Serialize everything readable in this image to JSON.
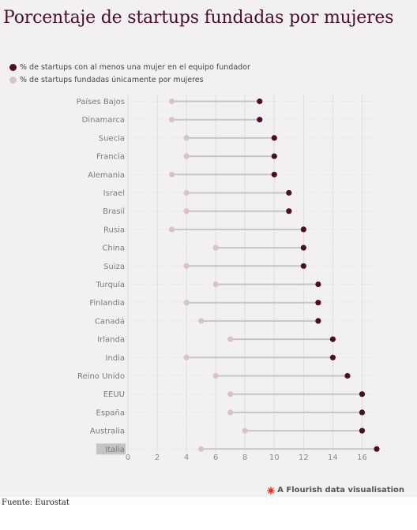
{
  "title": "Porcentaje de startups fundadas por mujeres",
  "source": "Fuente: Eurostat",
  "branding": {
    "label": "A Flourish data visualisation",
    "icon": "flourish-logo-icon"
  },
  "colors": {
    "dark": "#4a0d2e",
    "light": "#d9c2cc",
    "connector": "#c6c6c6",
    "grid": "#dedede"
  },
  "chart_data": {
    "type": "dumbbell",
    "series": [
      {
        "name": "% de startups con al menos una mujer en el equipo fundador",
        "color": "#4a0d2e"
      },
      {
        "name": "% de startups fundadas únicamente por mujeres",
        "color": "#d9c2cc"
      }
    ],
    "categories": [
      "Países Bajos",
      "Dinamarca",
      "Suecia",
      "Francia",
      "Alemania",
      "Israel",
      "Brasil",
      "Rusia",
      "China",
      "Suiza",
      "Turquía",
      "Finlandia",
      "Canadá",
      "Irlanda",
      "India",
      "Reino Unido",
      "EEUU",
      "España",
      "Australia",
      "Italia"
    ],
    "at_least_one_woman": [
      9,
      9,
      10,
      10,
      10,
      11,
      11,
      12,
      12,
      12,
      13,
      13,
      13,
      14,
      14,
      15,
      16,
      16,
      16,
      17
    ],
    "only_women": [
      3,
      3,
      4,
      4,
      3,
      4,
      4,
      3,
      6,
      4,
      6,
      4,
      5,
      7,
      4,
      6,
      7,
      7,
      8,
      5
    ],
    "xlim": [
      0,
      17
    ],
    "xticks": [
      "0",
      "2",
      "4",
      "6",
      "8",
      "10",
      "12",
      "14",
      "16"
    ],
    "highlighted_category": "Italia",
    "grid": true,
    "legend_position": "top-left"
  }
}
